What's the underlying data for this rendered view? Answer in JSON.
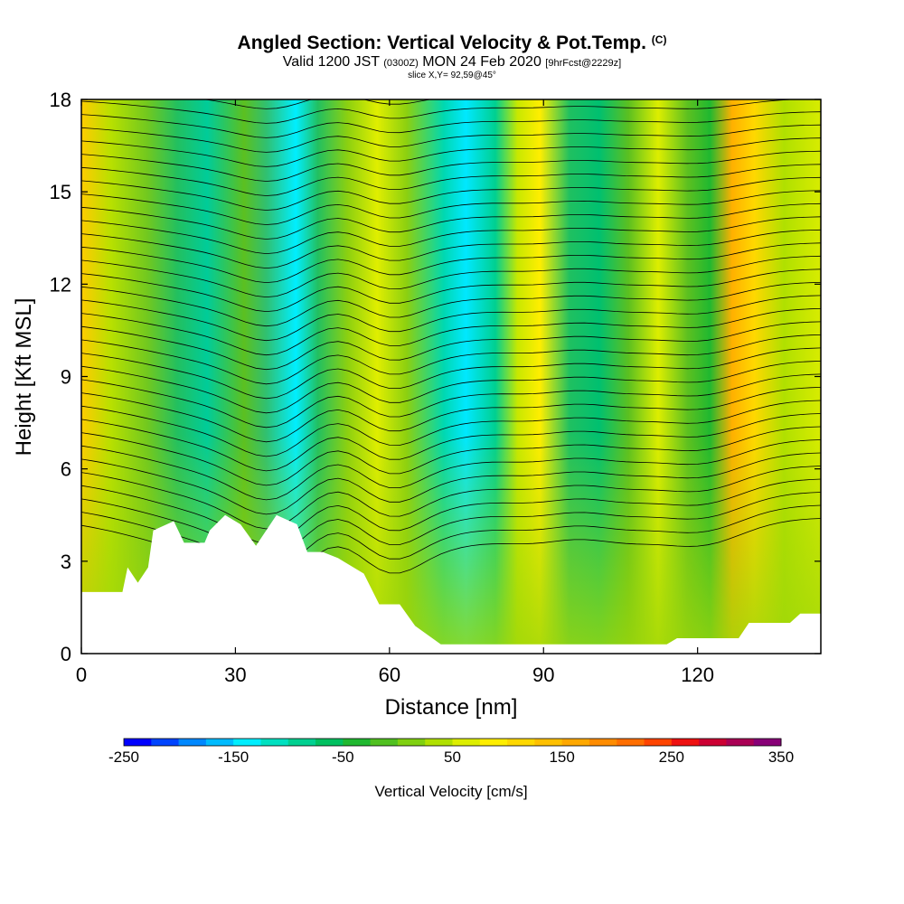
{
  "header": {
    "title": "Angled Section: Vertical Velocity & Pot.Temp.",
    "title_units": "(C)",
    "valid_prefix": "Valid 1200 JST",
    "valid_zulu": "(0300Z)",
    "valid_date": "MON 24 Feb 2020",
    "forecast": "[9hrFcst@2229z]",
    "slice": "slice X,Y= 92,59@45°"
  },
  "chart_data": {
    "type": "heatmap",
    "xlabel": "Distance [nm]",
    "ylabel": "Height [Kft MSL]",
    "xlim": [
      0,
      144
    ],
    "ylim": [
      0,
      18
    ],
    "x_ticks": [
      0,
      30,
      60,
      90,
      120
    ],
    "y_ticks": [
      0,
      3,
      6,
      9,
      12,
      15,
      18
    ],
    "field": "Vertical Velocity [cm/s]",
    "overlay": "Potential Temperature (C) contours",
    "colorbar": {
      "title": "Vertical Velocity [cm/s]",
      "min": -250,
      "max": 350,
      "step": 25,
      "labels": [
        -250,
        -150,
        -50,
        50,
        150,
        250,
        350
      ],
      "colors": [
        "#0000ff",
        "#0044ff",
        "#0088ff",
        "#00bbff",
        "#00eeff",
        "#00e0c0",
        "#00d090",
        "#00c060",
        "#20b830",
        "#50c020",
        "#80d010",
        "#b0e000",
        "#ddee00",
        "#ffee00",
        "#ffd800",
        "#ffc000",
        "#ffa800",
        "#ff8c00",
        "#ff6e00",
        "#ff4400",
        "#ee1111",
        "#cc0033",
        "#aa0055",
        "#880077"
      ]
    },
    "terrain_kft": [
      [
        0,
        2.0
      ],
      [
        8,
        2.0
      ],
      [
        9,
        2.8
      ],
      [
        11,
        2.3
      ],
      [
        13,
        2.8
      ],
      [
        14,
        4.0
      ],
      [
        18,
        4.3
      ],
      [
        20,
        3.6
      ],
      [
        24,
        3.6
      ],
      [
        25,
        4.0
      ],
      [
        28,
        4.5
      ],
      [
        31,
        4.2
      ],
      [
        34,
        3.5
      ],
      [
        38,
        4.5
      ],
      [
        42,
        4.2
      ],
      [
        44,
        3.3
      ],
      [
        47,
        3.3
      ],
      [
        50,
        3.1
      ],
      [
        55,
        2.6
      ],
      [
        58,
        1.6
      ],
      [
        62,
        1.6
      ],
      [
        65,
        0.9
      ],
      [
        70,
        0.3
      ],
      [
        85,
        0.3
      ],
      [
        100,
        0.3
      ],
      [
        114,
        0.3
      ],
      [
        116,
        0.5
      ],
      [
        128,
        0.5
      ],
      [
        130,
        1.0
      ],
      [
        138,
        1.0
      ],
      [
        140,
        1.3
      ],
      [
        144,
        1.3
      ]
    ]
  }
}
